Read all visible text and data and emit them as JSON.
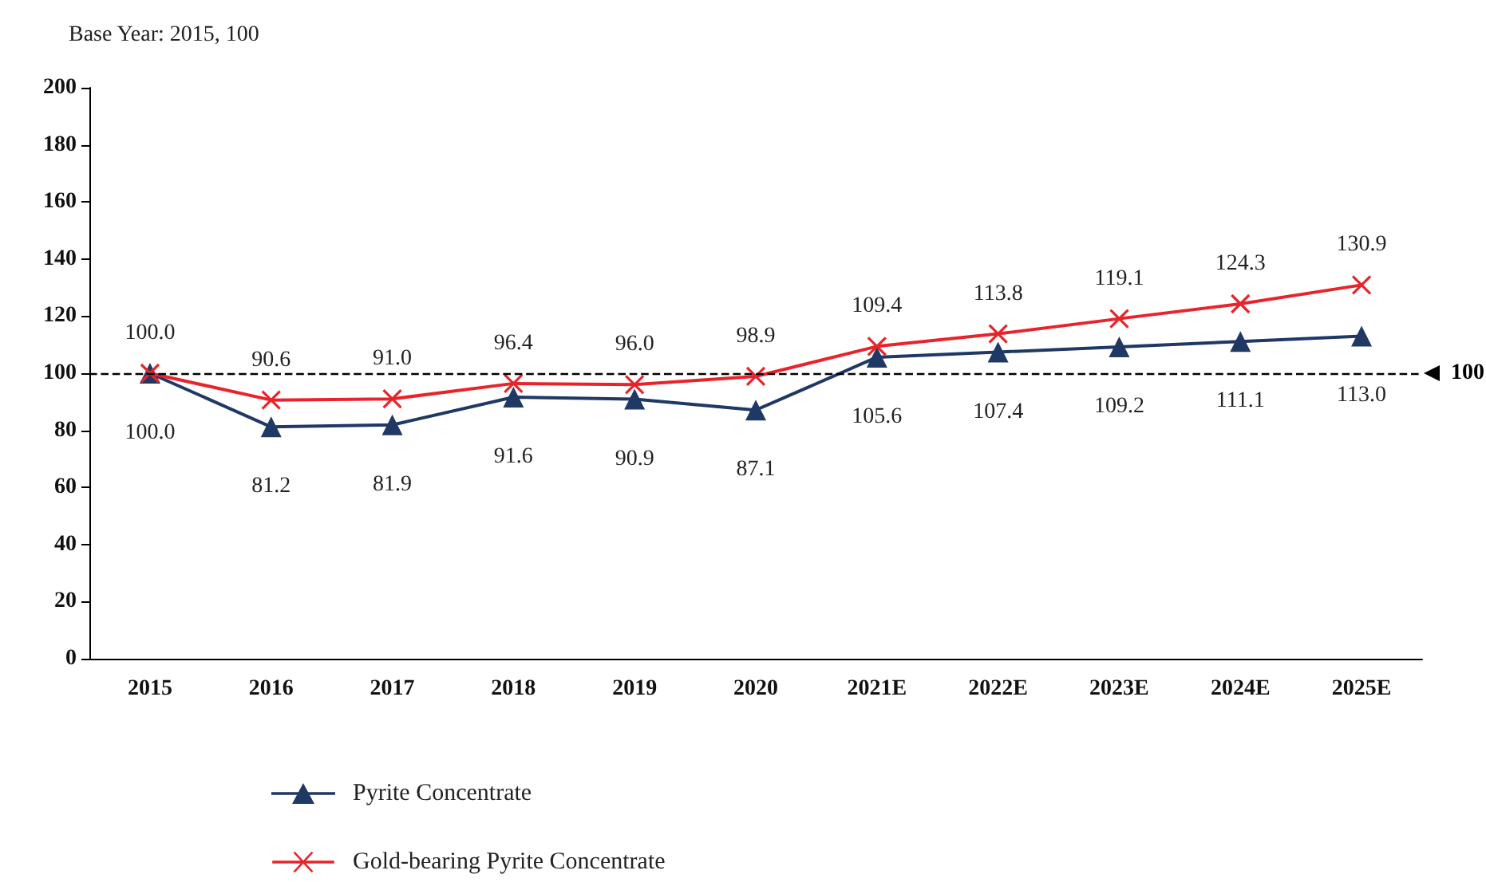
{
  "chart_data": {
    "type": "line",
    "ylabel": "Base Year: 2015, 100",
    "categories": [
      "2015",
      "2016",
      "2017",
      "2018",
      "2019",
      "2020",
      "2021E",
      "2022E",
      "2023E",
      "2024E",
      "2025E"
    ],
    "series": [
      {
        "name": "Pyrite Concentrate",
        "color": "#1f3864",
        "marker": "triangle",
        "values": [
          100.0,
          81.2,
          81.9,
          91.6,
          90.9,
          87.1,
          105.6,
          107.4,
          109.2,
          111.1,
          113.0
        ],
        "value_labels": [
          "100.0",
          "81.2",
          "81.9",
          "91.6",
          "90.9",
          "87.1",
          "105.6",
          "107.4",
          "109.2",
          "111.1",
          "113.0"
        ]
      },
      {
        "name": "Gold-bearing Pyrite Concentrate",
        "color": "#e8242b",
        "marker": "cross",
        "values": [
          100.0,
          90.6,
          91.0,
          96.4,
          96.0,
          98.9,
          109.4,
          113.8,
          119.1,
          124.3,
          130.9
        ],
        "value_labels": [
          "100.0",
          "90.6",
          "91.0",
          "96.4",
          "96.0",
          "98.9",
          "109.4",
          "113.8",
          "119.1",
          "124.3",
          "130.9"
        ]
      }
    ],
    "ylim": [
      0,
      200
    ],
    "yticks": [
      0,
      20,
      40,
      60,
      80,
      100,
      120,
      140,
      160,
      180,
      200
    ],
    "grid": false,
    "legend": "bottom left",
    "line_style": "solid",
    "ref_lines": [
      {
        "axis": "y",
        "value": 100,
        "label": "100",
        "color": "#000000",
        "line_style": "dashed"
      }
    ]
  }
}
